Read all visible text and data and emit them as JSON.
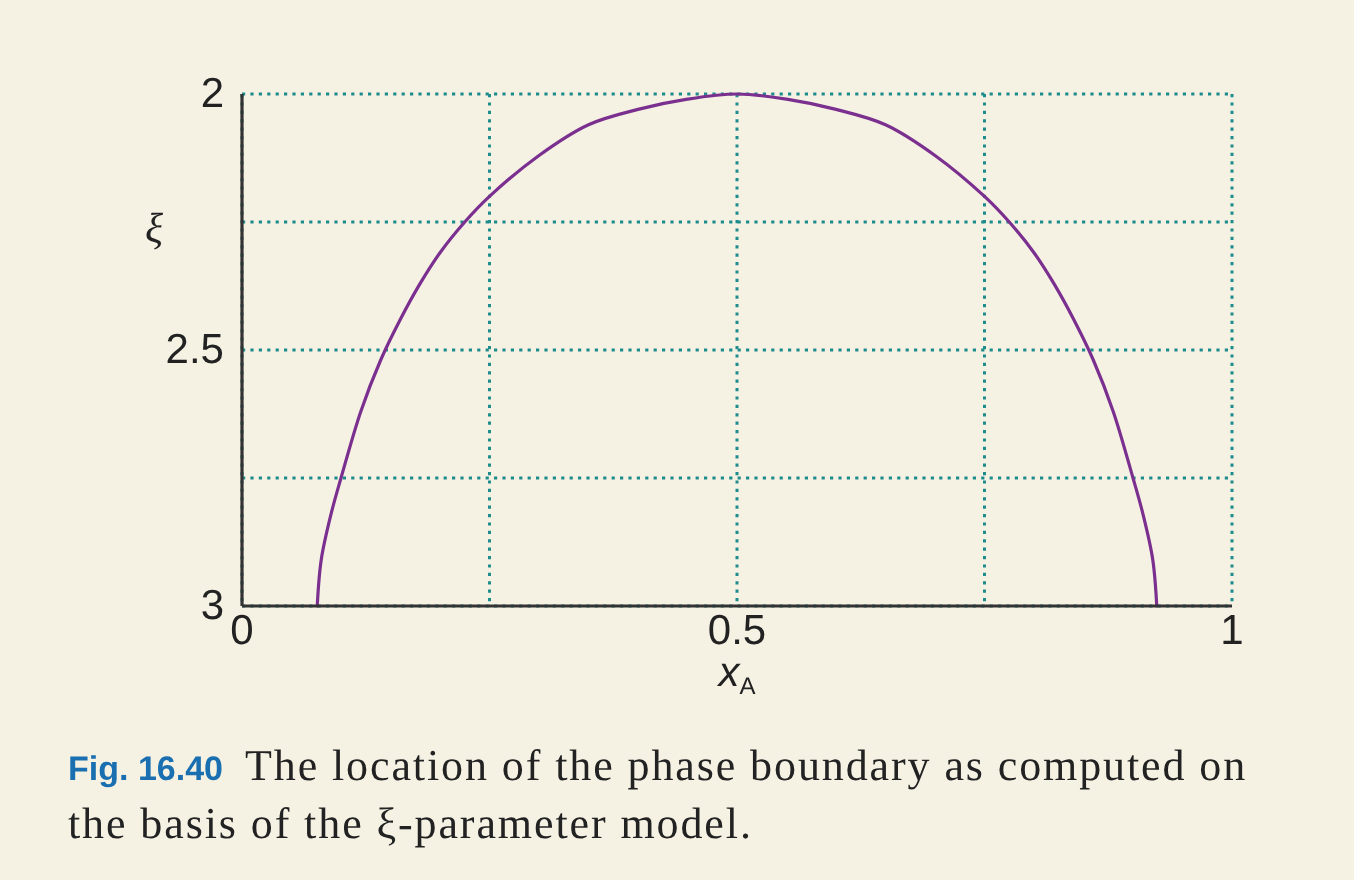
{
  "chart_data": {
    "type": "line",
    "xlabel": "x$_{A}$",
    "ylabel": "ξ",
    "annotations": [
      "Fig. 16.40 The location of the phase boundary as computed on the basis of the ξ-parameter model."
    ],
    "x": [
      0.076,
      0.08,
      0.09,
      0.1,
      0.12,
      0.14,
      0.16,
      0.18,
      0.2,
      0.225,
      0.25,
      0.3,
      0.35,
      0.4,
      0.45,
      0.5,
      0.55,
      0.6,
      0.65,
      0.7,
      0.75,
      0.775,
      0.8,
      0.82,
      0.84,
      0.86,
      0.88,
      0.9,
      0.91,
      0.92,
      0.924
    ],
    "series": [
      {
        "color": "#7b2f8f",
        "values": [
          3,
          2.91,
          2.82,
          2.75,
          2.62,
          2.52,
          2.44,
          2.37,
          2.31,
          2.25,
          2.2,
          2.12,
          2.06,
          2.03,
          2.01,
          2,
          2.01,
          2.03,
          2.06,
          2.12,
          2.2,
          2.25,
          2.31,
          2.37,
          2.44,
          2.52,
          2.62,
          2.75,
          2.82,
          2.91,
          3
        ]
      }
    ],
    "xlim": [
      0,
      1
    ],
    "ylim": [
      3,
      2
    ],
    "xticks": [
      0,
      {
        "value": 0.25,
        "label": null
      },
      0.5,
      {
        "value": 0.75,
        "label": null
      },
      1
    ],
    "yticks": [
      2,
      {
        "value": 2.25,
        "label": null
      },
      2.5,
      {
        "value": 2.75,
        "label": null
      },
      3
    ],
    "grid": true
  }
}
